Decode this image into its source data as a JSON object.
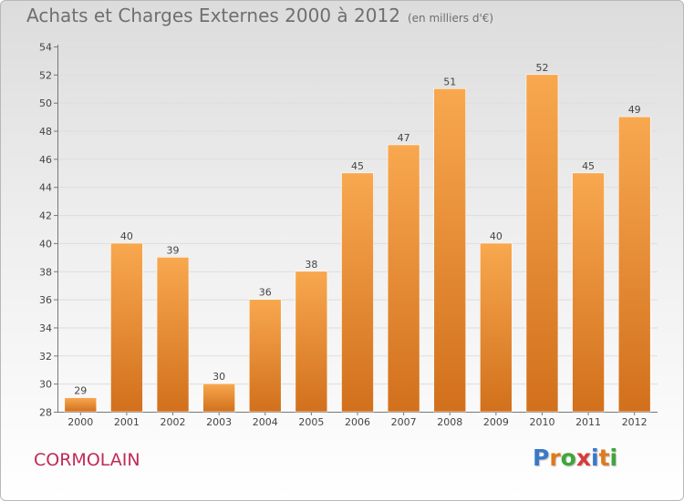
{
  "title": "Achats et Charges Externes 2000 à 2012",
  "subtitle": "(en milliers d'€)",
  "place": "CORMOLAIN",
  "logo": {
    "text": "Proxiti",
    "letter_colors": [
      "#3b78c9",
      "#e07a1c",
      "#3fa63a",
      "#d93a3a",
      "#3b78c9",
      "#e07a1c",
      "#3fa63a"
    ]
  },
  "colors": {
    "bar_light": "#f8a84f",
    "bar_dark": "#d2701c",
    "grid": "#dddddd",
    "place_text": "#c12a56"
  },
  "chart_data": {
    "type": "bar",
    "title": "Achats et Charges Externes 2000 à 2012",
    "subtitle": "(en milliers d'€)",
    "categories": [
      "2000",
      "2001",
      "2002",
      "2003",
      "2004",
      "2005",
      "2006",
      "2007",
      "2008",
      "2009",
      "2010",
      "2011",
      "2012"
    ],
    "values": [
      29,
      40,
      39,
      30,
      36,
      38,
      45,
      47,
      51,
      40,
      52,
      45,
      49
    ],
    "ylim": [
      28,
      54
    ],
    "yticks": [
      28,
      30,
      32,
      34,
      36,
      38,
      40,
      42,
      44,
      46,
      48,
      50,
      52,
      54
    ],
    "grid": true,
    "data_labels": true
  }
}
